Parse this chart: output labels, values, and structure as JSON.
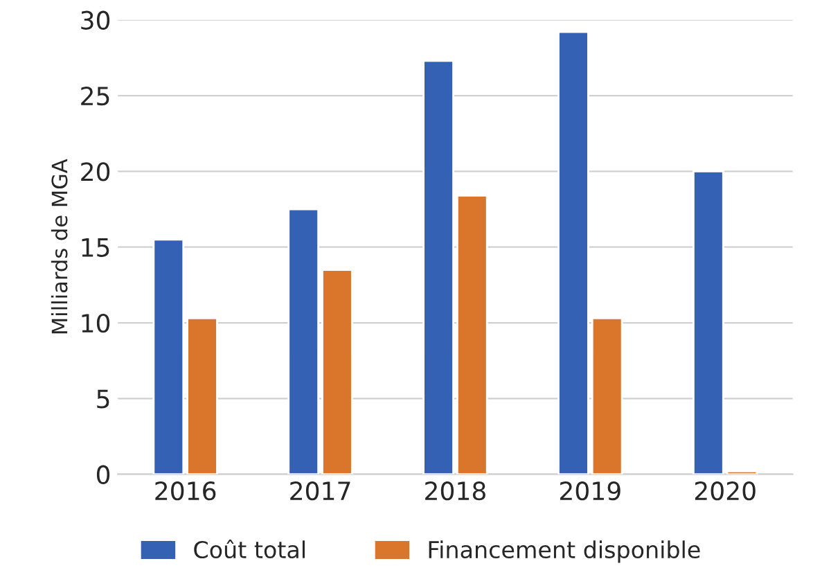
{
  "chart_data": {
    "type": "bar",
    "ylabel": "Milliards de MGA",
    "categories": [
      "2016",
      "2017",
      "2018",
      "2019",
      "2020"
    ],
    "series": [
      {
        "name": "Coût total",
        "color": "#3461b3",
        "values": [
          15.5,
          17.5,
          27.3,
          29.2,
          20.0
        ]
      },
      {
        "name": "Financement disponible",
        "color": "#d9762c",
        "values": [
          10.3,
          13.5,
          18.4,
          10.3,
          0.2
        ]
      }
    ],
    "ylim": [
      0,
      30
    ],
    "yticks": [
      0,
      5,
      10,
      15,
      20,
      25,
      30
    ],
    "grid": "y",
    "legend": "bottom"
  }
}
